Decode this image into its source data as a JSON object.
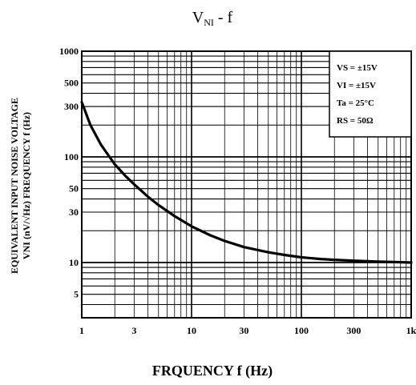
{
  "chart_data": {
    "type": "line",
    "title": "V",
    "title_sub": "NI",
    "title_suffix": " - f",
    "xlabel": "FRQUENCY f (Hz)",
    "ylabel_line1": "EQUIVALENT INPUT NOISE VOLTAGE",
    "ylabel_line2": "VNI (nV/√Hz) FREQUENCY f (Hz)",
    "xscale": "log",
    "yscale": "log",
    "xlim": [
      1,
      1000
    ],
    "ylim": [
      3,
      1000
    ],
    "x_ticks": [
      {
        "value": 1,
        "label": "1"
      },
      {
        "value": 3,
        "label": "3"
      },
      {
        "value": 10,
        "label": "10"
      },
      {
        "value": 30,
        "label": "30"
      },
      {
        "value": 100,
        "label": "100"
      },
      {
        "value": 300,
        "label": "300"
      },
      {
        "value": 1000,
        "label": "1k"
      }
    ],
    "y_ticks": [
      {
        "value": 5,
        "label": "5"
      },
      {
        "value": 10,
        "label": "10"
      },
      {
        "value": 30,
        "label": "30"
      },
      {
        "value": 50,
        "label": "50"
      },
      {
        "value": 100,
        "label": "100"
      },
      {
        "value": 300,
        "label": "300"
      },
      {
        "value": 500,
        "label": "500"
      },
      {
        "value": 1000,
        "label": "1000"
      }
    ],
    "grid": true,
    "legend_box": {
      "position": "top-right",
      "lines": [
        "VS = ±15V",
        "VI = ±15V",
        "Ta = 25°C",
        "RS = 50Ω"
      ]
    },
    "series": [
      {
        "x": [
          1,
          1.2,
          1.5,
          2,
          2.5,
          3,
          4,
          5,
          7,
          10,
          15,
          20,
          30,
          50,
          70,
          100,
          150,
          200,
          300,
          500,
          700,
          1000
        ],
        "y": [
          330,
          200,
          130,
          85,
          66,
          55,
          42,
          35,
          27.5,
          22,
          18,
          16,
          14,
          12.5,
          11.8,
          11.2,
          10.8,
          10.6,
          10.4,
          10.2,
          10.1,
          10
        ]
      }
    ]
  }
}
